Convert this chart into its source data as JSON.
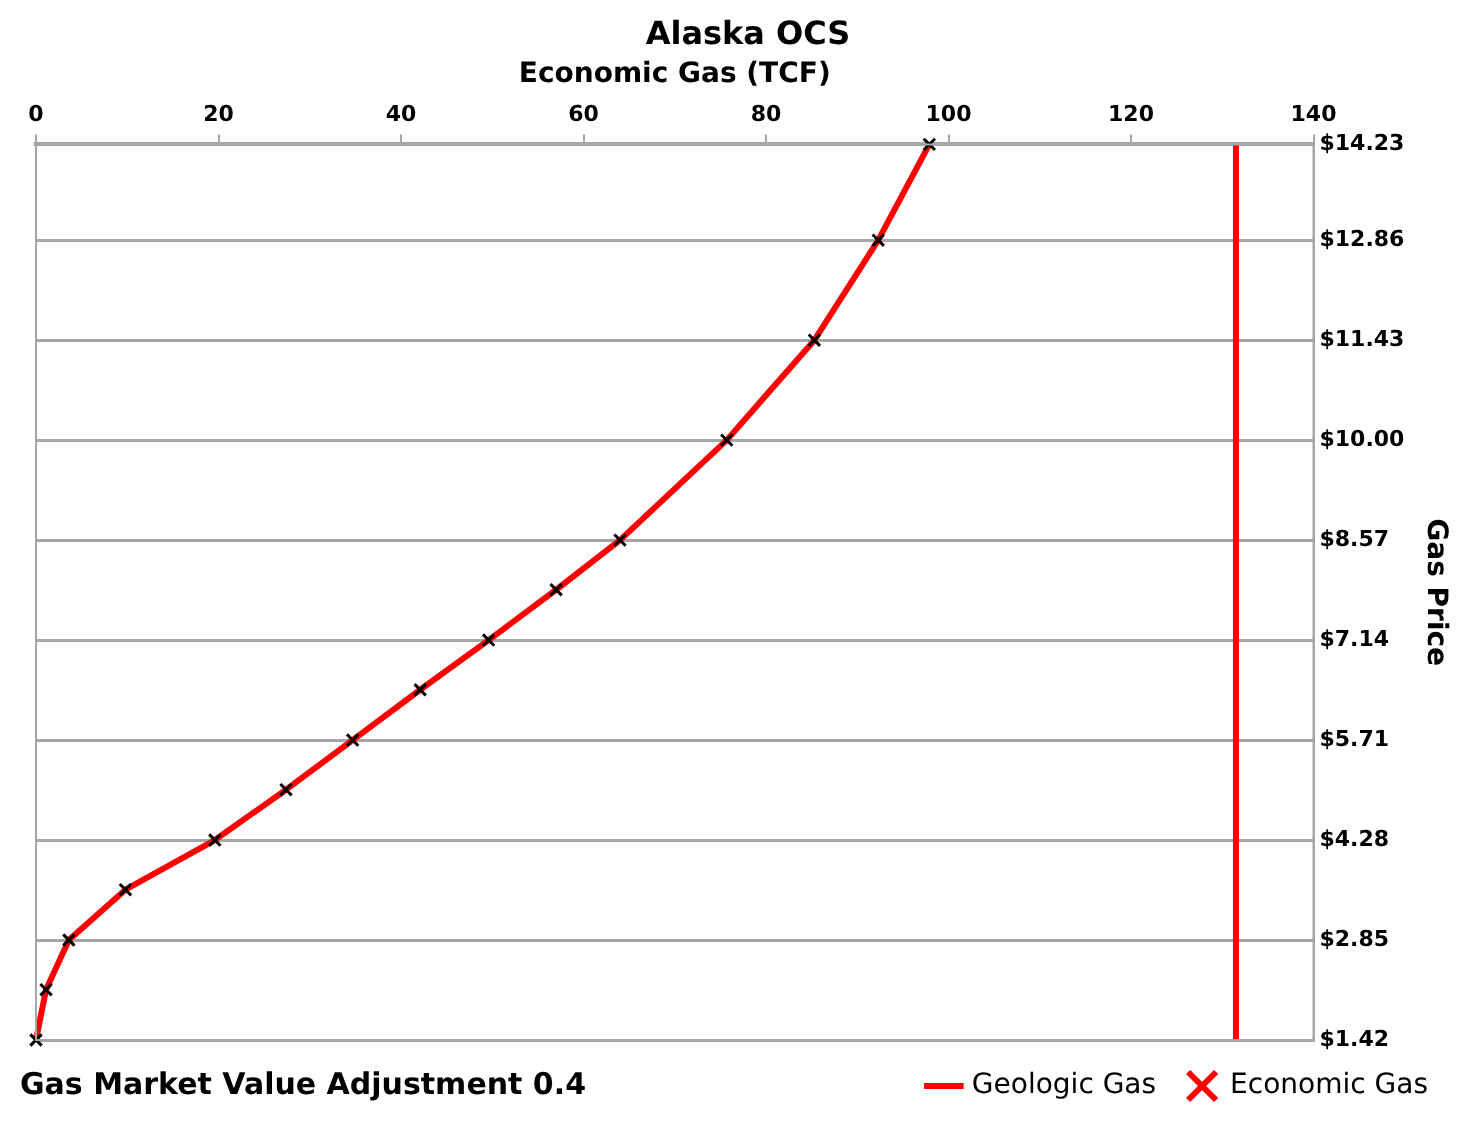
{
  "chart_data": {
    "type": "line",
    "title": "Alaska OCS",
    "xlabel": "Economic Gas (TCF)",
    "ylabel": "Gas Price",
    "xlim": [
      0,
      140
    ],
    "xticks": [
      0,
      20,
      40,
      60,
      80,
      100,
      120,
      140
    ],
    "ylim": [
      1.42,
      14.23
    ],
    "yticks": [
      {
        "value": 1.42,
        "label": "$1.42"
      },
      {
        "value": 2.85,
        "label": "$2.85"
      },
      {
        "value": 4.28,
        "label": "$4.28"
      },
      {
        "value": 5.71,
        "label": "$5.71"
      },
      {
        "value": 7.14,
        "label": "$7.14"
      },
      {
        "value": 8.57,
        "label": "$8.57"
      },
      {
        "value": 10,
        "label": "$10.00"
      },
      {
        "value": 11.43,
        "label": "$11.43"
      },
      {
        "value": 12.86,
        "label": "$12.86"
      },
      {
        "value": 14.23,
        "label": "$14.23"
      }
    ],
    "grid": "y",
    "legend": "bottom right",
    "line_style": "solid",
    "annotations": [
      "Gas Market Value Adjustment 0.4"
    ],
    "series": [
      {
        "name": "Geologic Gas",
        "color": "#ff0000",
        "marker": "none",
        "x": [
          131.5,
          131.5
        ],
        "values": [
          1.42,
          14.23
        ]
      },
      {
        "name": "Economic Gas",
        "color": "#ff0000",
        "marker": "cross",
        "x": [
          0,
          1.1,
          3.6,
          9.8,
          19.6,
          27.4,
          34.7,
          42.1,
          49.6,
          57,
          64,
          75.7,
          85.3,
          92.3,
          97.9
        ],
        "values": [
          1.42,
          2.14,
          2.85,
          3.57,
          4.28,
          5,
          5.71,
          6.43,
          7.14,
          7.86,
          8.57,
          10,
          11.43,
          12.86,
          14.23
        ]
      }
    ]
  }
}
